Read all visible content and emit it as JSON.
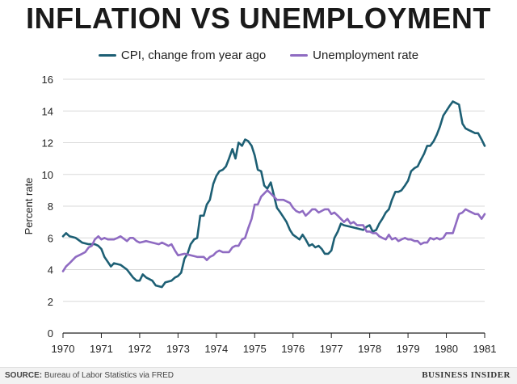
{
  "chart_data": {
    "type": "line",
    "title": "INFLATION VS UNEMPLOYMENT",
    "ylabel": "Percent rate",
    "xlabel": "",
    "xlim": [
      1970,
      1981
    ],
    "ylim": [
      0,
      16
    ],
    "x_ticks": [
      "1970",
      "1971",
      "1972",
      "1973",
      "1974",
      "1975",
      "1976",
      "1977",
      "1978",
      "1979",
      "1980",
      "1981"
    ],
    "y_ticks": [
      "0",
      "2",
      "4",
      "6",
      "8",
      "10",
      "12",
      "14",
      "16"
    ],
    "grid": true,
    "legend": "top-center",
    "series": [
      {
        "name": "CPI, change from year ago",
        "color": "#1d5f74",
        "points": [
          [
            1970.0,
            6.1
          ],
          [
            1970.08,
            6.3
          ],
          [
            1970.17,
            6.1
          ],
          [
            1970.33,
            6.0
          ],
          [
            1970.5,
            5.7
          ],
          [
            1970.67,
            5.6
          ],
          [
            1970.83,
            5.6
          ],
          [
            1970.92,
            5.5
          ],
          [
            1971.0,
            5.3
          ],
          [
            1971.08,
            4.8
          ],
          [
            1971.25,
            4.2
          ],
          [
            1971.33,
            4.4
          ],
          [
            1971.5,
            4.3
          ],
          [
            1971.67,
            4.0
          ],
          [
            1971.83,
            3.5
          ],
          [
            1971.92,
            3.3
          ],
          [
            1972.0,
            3.3
          ],
          [
            1972.08,
            3.7
          ],
          [
            1972.17,
            3.5
          ],
          [
            1972.33,
            3.3
          ],
          [
            1972.42,
            3.0
          ],
          [
            1972.58,
            2.9
          ],
          [
            1972.67,
            3.2
          ],
          [
            1972.83,
            3.3
          ],
          [
            1972.92,
            3.5
          ],
          [
            1973.0,
            3.6
          ],
          [
            1973.08,
            3.8
          ],
          [
            1973.17,
            4.7
          ],
          [
            1973.25,
            5.0
          ],
          [
            1973.33,
            5.6
          ],
          [
            1973.42,
            5.9
          ],
          [
            1973.5,
            6.0
          ],
          [
            1973.58,
            7.4
          ],
          [
            1973.67,
            7.4
          ],
          [
            1973.75,
            8.1
          ],
          [
            1973.83,
            8.4
          ],
          [
            1973.92,
            9.4
          ],
          [
            1974.0,
            9.9
          ],
          [
            1974.08,
            10.2
          ],
          [
            1974.17,
            10.3
          ],
          [
            1974.25,
            10.5
          ],
          [
            1974.33,
            11.0
          ],
          [
            1974.42,
            11.6
          ],
          [
            1974.5,
            11.0
          ],
          [
            1974.58,
            12.0
          ],
          [
            1974.67,
            11.8
          ],
          [
            1974.75,
            12.2
          ],
          [
            1974.83,
            12.1
          ],
          [
            1974.92,
            11.8
          ],
          [
            1975.0,
            11.2
          ],
          [
            1975.08,
            10.3
          ],
          [
            1975.17,
            10.2
          ],
          [
            1975.25,
            9.3
          ],
          [
            1975.33,
            9.1
          ],
          [
            1975.42,
            9.5
          ],
          [
            1975.5,
            8.7
          ],
          [
            1975.58,
            7.9
          ],
          [
            1975.67,
            7.6
          ],
          [
            1975.75,
            7.3
          ],
          [
            1975.83,
            7.0
          ],
          [
            1975.92,
            6.5
          ],
          [
            1976.0,
            6.2
          ],
          [
            1976.17,
            5.9
          ],
          [
            1976.25,
            6.2
          ],
          [
            1976.33,
            5.9
          ],
          [
            1976.42,
            5.5
          ],
          [
            1976.5,
            5.6
          ],
          [
            1976.58,
            5.4
          ],
          [
            1976.67,
            5.5
          ],
          [
            1976.75,
            5.3
          ],
          [
            1976.83,
            5.0
          ],
          [
            1976.92,
            5.0
          ],
          [
            1977.0,
            5.2
          ],
          [
            1977.08,
            6.0
          ],
          [
            1977.17,
            6.4
          ],
          [
            1977.25,
            6.9
          ],
          [
            1977.33,
            6.8
          ],
          [
            1977.5,
            6.7
          ],
          [
            1977.67,
            6.6
          ],
          [
            1977.83,
            6.5
          ],
          [
            1977.92,
            6.7
          ],
          [
            1978.0,
            6.8
          ],
          [
            1978.08,
            6.4
          ],
          [
            1978.17,
            6.5
          ],
          [
            1978.25,
            6.9
          ],
          [
            1978.33,
            7.2
          ],
          [
            1978.42,
            7.6
          ],
          [
            1978.5,
            7.8
          ],
          [
            1978.58,
            8.4
          ],
          [
            1978.67,
            8.9
          ],
          [
            1978.75,
            8.9
          ],
          [
            1978.83,
            9.0
          ],
          [
            1978.92,
            9.3
          ],
          [
            1979.0,
            9.6
          ],
          [
            1979.08,
            10.2
          ],
          [
            1979.17,
            10.4
          ],
          [
            1979.25,
            10.5
          ],
          [
            1979.33,
            10.9
          ],
          [
            1979.42,
            11.3
          ],
          [
            1979.5,
            11.8
          ],
          [
            1979.58,
            11.8
          ],
          [
            1979.67,
            12.1
          ],
          [
            1979.75,
            12.5
          ],
          [
            1979.83,
            13.0
          ],
          [
            1979.92,
            13.7
          ],
          [
            1980.0,
            14.0
          ],
          [
            1980.08,
            14.3
          ],
          [
            1980.17,
            14.6
          ],
          [
            1980.25,
            14.5
          ],
          [
            1980.33,
            14.4
          ],
          [
            1980.42,
            13.2
          ],
          [
            1980.5,
            12.9
          ],
          [
            1980.58,
            12.8
          ],
          [
            1980.67,
            12.7
          ],
          [
            1980.75,
            12.6
          ],
          [
            1980.83,
            12.6
          ],
          [
            1980.92,
            12.2
          ],
          [
            1981.0,
            11.8
          ]
        ]
      },
      {
        "name": "Unemployment rate",
        "color": "#8f6bc2",
        "points": [
          [
            1970.0,
            3.9
          ],
          [
            1970.08,
            4.2
          ],
          [
            1970.17,
            4.4
          ],
          [
            1970.25,
            4.6
          ],
          [
            1970.33,
            4.8
          ],
          [
            1970.5,
            5.0
          ],
          [
            1970.58,
            5.1
          ],
          [
            1970.67,
            5.4
          ],
          [
            1970.75,
            5.5
          ],
          [
            1970.83,
            5.9
          ],
          [
            1970.92,
            6.1
          ],
          [
            1971.0,
            5.9
          ],
          [
            1971.08,
            6.0
          ],
          [
            1971.17,
            5.9
          ],
          [
            1971.33,
            5.9
          ],
          [
            1971.42,
            6.0
          ],
          [
            1971.5,
            6.1
          ],
          [
            1971.67,
            5.8
          ],
          [
            1971.75,
            6.0
          ],
          [
            1971.83,
            6.0
          ],
          [
            1971.92,
            5.8
          ],
          [
            1972.0,
            5.7
          ],
          [
            1972.17,
            5.8
          ],
          [
            1972.33,
            5.7
          ],
          [
            1972.5,
            5.6
          ],
          [
            1972.58,
            5.7
          ],
          [
            1972.67,
            5.6
          ],
          [
            1972.75,
            5.5
          ],
          [
            1972.83,
            5.6
          ],
          [
            1972.92,
            5.2
          ],
          [
            1973.0,
            4.9
          ],
          [
            1973.17,
            5.0
          ],
          [
            1973.33,
            4.9
          ],
          [
            1973.5,
            4.8
          ],
          [
            1973.67,
            4.8
          ],
          [
            1973.75,
            4.6
          ],
          [
            1973.83,
            4.8
          ],
          [
            1973.92,
            4.9
          ],
          [
            1974.0,
            5.1
          ],
          [
            1974.08,
            5.2
          ],
          [
            1974.17,
            5.1
          ],
          [
            1974.33,
            5.1
          ],
          [
            1974.42,
            5.4
          ],
          [
            1974.5,
            5.5
          ],
          [
            1974.58,
            5.5
          ],
          [
            1974.67,
            5.9
          ],
          [
            1974.75,
            6.0
          ],
          [
            1974.83,
            6.6
          ],
          [
            1974.92,
            7.2
          ],
          [
            1975.0,
            8.1
          ],
          [
            1975.08,
            8.1
          ],
          [
            1975.17,
            8.6
          ],
          [
            1975.25,
            8.8
          ],
          [
            1975.33,
            9.0
          ],
          [
            1975.42,
            8.8
          ],
          [
            1975.5,
            8.6
          ],
          [
            1975.58,
            8.4
          ],
          [
            1975.75,
            8.4
          ],
          [
            1975.83,
            8.3
          ],
          [
            1975.92,
            8.2
          ],
          [
            1976.0,
            7.9
          ],
          [
            1976.08,
            7.7
          ],
          [
            1976.17,
            7.6
          ],
          [
            1976.25,
            7.7
          ],
          [
            1976.33,
            7.4
          ],
          [
            1976.42,
            7.6
          ],
          [
            1976.5,
            7.8
          ],
          [
            1976.58,
            7.8
          ],
          [
            1976.67,
            7.6
          ],
          [
            1976.75,
            7.7
          ],
          [
            1976.83,
            7.8
          ],
          [
            1976.92,
            7.8
          ],
          [
            1977.0,
            7.5
          ],
          [
            1977.08,
            7.6
          ],
          [
            1977.17,
            7.4
          ],
          [
            1977.25,
            7.2
          ],
          [
            1977.33,
            7.0
          ],
          [
            1977.42,
            7.2
          ],
          [
            1977.5,
            6.9
          ],
          [
            1977.58,
            7.0
          ],
          [
            1977.67,
            6.8
          ],
          [
            1977.75,
            6.8
          ],
          [
            1977.83,
            6.8
          ],
          [
            1977.92,
            6.4
          ],
          [
            1978.0,
            6.4
          ],
          [
            1978.08,
            6.3
          ],
          [
            1978.17,
            6.3
          ],
          [
            1978.25,
            6.1
          ],
          [
            1978.33,
            6.0
          ],
          [
            1978.42,
            5.9
          ],
          [
            1978.5,
            6.2
          ],
          [
            1978.58,
            5.9
          ],
          [
            1978.67,
            6.0
          ],
          [
            1978.75,
            5.8
          ],
          [
            1978.83,
            5.9
          ],
          [
            1978.92,
            6.0
          ],
          [
            1979.0,
            5.9
          ],
          [
            1979.08,
            5.9
          ],
          [
            1979.17,
            5.8
          ],
          [
            1979.25,
            5.8
          ],
          [
            1979.33,
            5.6
          ],
          [
            1979.42,
            5.7
          ],
          [
            1979.5,
            5.7
          ],
          [
            1979.58,
            6.0
          ],
          [
            1979.67,
            5.9
          ],
          [
            1979.75,
            6.0
          ],
          [
            1979.83,
            5.9
          ],
          [
            1979.92,
            6.0
          ],
          [
            1980.0,
            6.3
          ],
          [
            1980.08,
            6.3
          ],
          [
            1980.17,
            6.3
          ],
          [
            1980.25,
            6.9
          ],
          [
            1980.33,
            7.5
          ],
          [
            1980.42,
            7.6
          ],
          [
            1980.5,
            7.8
          ],
          [
            1980.58,
            7.7
          ],
          [
            1980.67,
            7.6
          ],
          [
            1980.75,
            7.5
          ],
          [
            1980.83,
            7.5
          ],
          [
            1980.92,
            7.2
          ],
          [
            1981.0,
            7.5
          ]
        ]
      }
    ]
  },
  "footer": {
    "source_label": "SOURCE:",
    "source_text": "Bureau of Labor Statistics via FRED",
    "brand": "BUSINESS INSIDER"
  }
}
